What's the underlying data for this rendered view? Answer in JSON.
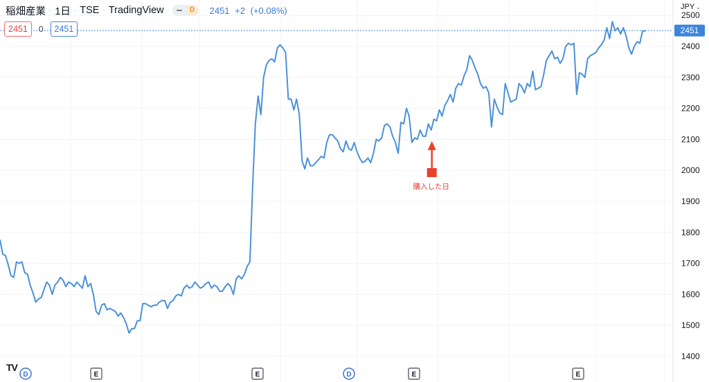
{
  "header": {
    "symbol_name": "稲畑産業",
    "interval": "1日",
    "exchange": "TSE",
    "source": "TradingView",
    "toggle_badge": "D",
    "last_price": "2451",
    "change": "+2",
    "change_pct": "(+0.08%)",
    "bid": "2451",
    "spread": "0",
    "ask": "2451"
  },
  "axis": {
    "currency": "JPY",
    "current_price_label": "2451"
  },
  "annotation": {
    "label": "購入した日",
    "color": "#e8412c"
  },
  "colors": {
    "line": "#4a90d9",
    "current_price": "#3d84dc",
    "event_border": "#434651",
    "dividend": "#3d6fd0"
  },
  "chart_data": {
    "type": "line",
    "ylim": [
      1380,
      2540
    ],
    "yticks": [
      1400,
      1500,
      1600,
      1700,
      1800,
      1900,
      2000,
      2100,
      2200,
      2300,
      2400,
      2500
    ],
    "current_price": 2451,
    "xlabel": "",
    "ylabel": "",
    "grid": true,
    "events": [
      {
        "label": "D",
        "kind": "dividend",
        "x_index": 6
      },
      {
        "label": "E",
        "kind": "earnings",
        "x_index": 26
      },
      {
        "label": "E",
        "kind": "earnings",
        "x_index": 68
      },
      {
        "label": "D",
        "kind": "dividend",
        "x_index": 93
      },
      {
        "label": "E",
        "kind": "earnings",
        "x_index": 111
      },
      {
        "label": "E",
        "kind": "earnings",
        "x_index": 155
      }
    ],
    "annotation_index": 155,
    "values": [
      1775,
      1730,
      1725,
      1695,
      1660,
      1655,
      1705,
      1700,
      1705,
      1670,
      1665,
      1630,
      1605,
      1575,
      1585,
      1590,
      1615,
      1640,
      1630,
      1600,
      1630,
      1640,
      1655,
      1645,
      1625,
      1640,
      1635,
      1625,
      1640,
      1630,
      1620,
      1660,
      1625,
      1635,
      1600,
      1545,
      1535,
      1565,
      1570,
      1550,
      1555,
      1550,
      1545,
      1530,
      1540,
      1525,
      1505,
      1475,
      1490,
      1490,
      1515,
      1515,
      1570,
      1570,
      1565,
      1560,
      1565,
      1565,
      1575,
      1580,
      1580,
      1555,
      1575,
      1580,
      1595,
      1600,
      1595,
      1620,
      1630,
      1620,
      1625,
      1640,
      1630,
      1620,
      1625,
      1635,
      1640,
      1620,
      1630,
      1625,
      1610,
      1610,
      1625,
      1635,
      1625,
      1600,
      1650,
      1660,
      1650,
      1665,
      1690,
      1705,
      1950,
      2150,
      2240,
      2180,
      2300,
      2340,
      2355,
      2360,
      2350,
      2395,
      2405,
      2395,
      2380,
      2230,
      2230,
      2195,
      2230,
      2180,
      2030,
      2005,
      2040,
      2015,
      2015,
      2025,
      2035,
      2045,
      2040,
      2090,
      2115,
      2115,
      2105,
      2095,
      2070,
      2060,
      2095,
      2070,
      2065,
      2090,
      2060,
      2040,
      2025,
      2030,
      2040,
      2025,
      2055,
      2100,
      2095,
      2105,
      2145,
      2150,
      2140,
      2110,
      2090,
      2055,
      2155,
      2150,
      2200,
      2175,
      2090,
      2105,
      2100,
      2130,
      2110,
      2110,
      2150,
      2130,
      2165,
      2160,
      2195,
      2175,
      2210,
      2225,
      2245,
      2220,
      2265,
      2280,
      2275,
      2305,
      2325,
      2370,
      2355,
      2330,
      2310,
      2280,
      2265,
      2270,
      2250,
      2140,
      2230,
      2205,
      2185,
      2180,
      2280,
      2250,
      2220,
      2225,
      2230,
      2280,
      2270,
      2250,
      2280,
      2270,
      2320,
      2260,
      2265,
      2270,
      2310,
      2355,
      2370,
      2385,
      2360,
      2365,
      2345,
      2360,
      2400,
      2410,
      2405,
      2410,
      2245,
      2315,
      2310,
      2300,
      2360,
      2370,
      2375,
      2380,
      2395,
      2405,
      2420,
      2460,
      2425,
      2480,
      2450,
      2460,
      2440,
      2460,
      2435,
      2395,
      2375,
      2400,
      2415,
      2410,
      2450,
      2450
    ]
  }
}
